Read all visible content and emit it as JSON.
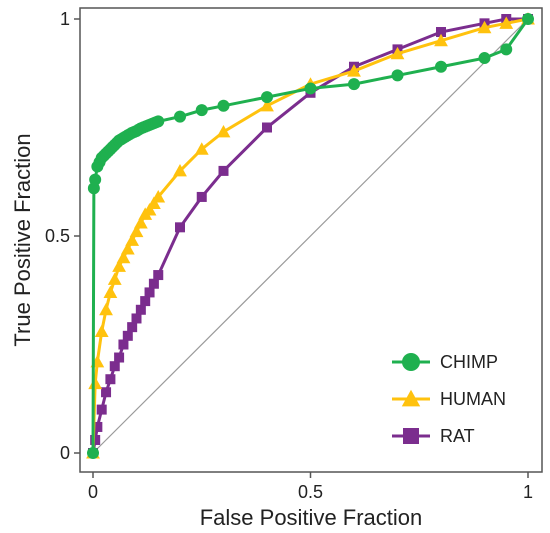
{
  "chart_data": {
    "type": "line",
    "title": "",
    "xlabel": "False Positive Fraction",
    "ylabel": "True Positive Fraction",
    "xlim": [
      0,
      1
    ],
    "ylim": [
      0,
      1
    ],
    "xticks": [
      0,
      0.5,
      1
    ],
    "xtick_labels": [
      "0",
      "0.5",
      "1"
    ],
    "yticks": [
      0,
      0.5,
      1
    ],
    "ytick_labels": [
      "0",
      "0.5",
      "1"
    ],
    "grid": false,
    "legend_position": "bottom-right",
    "reference_line": {
      "x": [
        0,
        1
      ],
      "y": [
        0,
        1
      ],
      "color": "#9a9a9a"
    },
    "series": [
      {
        "name": "CHIMP",
        "color": "#1fb04f",
        "marker": "circle",
        "x": [
          0,
          0.002,
          0.005,
          0.01,
          0.015,
          0.02,
          0.025,
          0.03,
          0.035,
          0.04,
          0.045,
          0.05,
          0.055,
          0.06,
          0.065,
          0.07,
          0.075,
          0.08,
          0.085,
          0.09,
          0.095,
          0.1,
          0.105,
          0.11,
          0.115,
          0.12,
          0.125,
          0.13,
          0.135,
          0.14,
          0.145,
          0.15,
          0.2,
          0.25,
          0.3,
          0.4,
          0.5,
          0.6,
          0.7,
          0.8,
          0.9,
          0.95,
          1.0
        ],
        "y": [
          0,
          0.61,
          0.63,
          0.66,
          0.67,
          0.68,
          0.685,
          0.69,
          0.695,
          0.7,
          0.705,
          0.71,
          0.715,
          0.72,
          0.723,
          0.726,
          0.729,
          0.732,
          0.735,
          0.738,
          0.74,
          0.742,
          0.745,
          0.748,
          0.75,
          0.752,
          0.754,
          0.756,
          0.758,
          0.76,
          0.762,
          0.764,
          0.775,
          0.79,
          0.8,
          0.82,
          0.84,
          0.85,
          0.87,
          0.89,
          0.91,
          0.93,
          1.0
        ]
      },
      {
        "name": "HUMAN",
        "color": "#ffc20e",
        "marker": "triangle",
        "x": [
          0,
          0.005,
          0.01,
          0.02,
          0.03,
          0.04,
          0.05,
          0.06,
          0.07,
          0.08,
          0.09,
          0.1,
          0.11,
          0.12,
          0.13,
          0.14,
          0.15,
          0.2,
          0.25,
          0.3,
          0.4,
          0.5,
          0.6,
          0.7,
          0.8,
          0.9,
          0.95,
          1.0
        ],
        "y": [
          0,
          0.16,
          0.21,
          0.28,
          0.33,
          0.37,
          0.4,
          0.43,
          0.45,
          0.47,
          0.49,
          0.51,
          0.53,
          0.55,
          0.56,
          0.575,
          0.59,
          0.65,
          0.7,
          0.74,
          0.8,
          0.85,
          0.88,
          0.92,
          0.95,
          0.98,
          0.99,
          1.0
        ]
      },
      {
        "name": "RAT",
        "color": "#7b2d8e",
        "marker": "square",
        "x": [
          0,
          0.005,
          0.01,
          0.02,
          0.03,
          0.04,
          0.05,
          0.06,
          0.07,
          0.08,
          0.09,
          0.1,
          0.11,
          0.12,
          0.13,
          0.14,
          0.15,
          0.2,
          0.25,
          0.3,
          0.4,
          0.5,
          0.6,
          0.7,
          0.8,
          0.9,
          0.95,
          1.0
        ],
        "y": [
          0,
          0.03,
          0.06,
          0.1,
          0.14,
          0.17,
          0.2,
          0.22,
          0.25,
          0.27,
          0.29,
          0.31,
          0.33,
          0.35,
          0.37,
          0.39,
          0.41,
          0.52,
          0.59,
          0.65,
          0.75,
          0.83,
          0.89,
          0.93,
          0.97,
          0.99,
          1.0,
          1.0
        ]
      }
    ]
  }
}
